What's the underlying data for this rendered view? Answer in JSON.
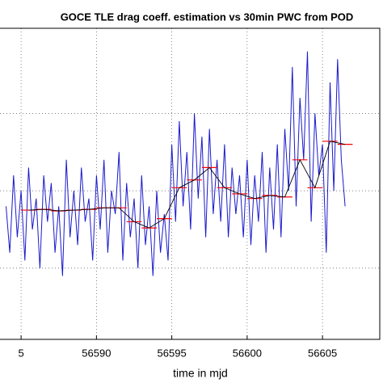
{
  "chart_data": {
    "type": "line",
    "title": "GOCE TLE drag coeff. estimation vs 30min PWC from POD",
    "xlabel": "time in mjd",
    "xlim": [
      56583.6,
      56608.8
    ],
    "xticks": [
      {
        "value": 56585,
        "label": "5"
      },
      56590,
      56595,
      56600,
      56605
    ],
    "ylim": [
      2.04,
      4.05
    ],
    "ygrid": [
      2.5,
      3,
      3.5
    ],
    "grid": true,
    "series": [
      {
        "color": "#1a1acc",
        "x": [
          56584,
          56584.25,
          56584.5,
          56584.75,
          56585,
          56585.25,
          56585.5,
          56585.75,
          56586,
          56586.25,
          56586.5,
          56586.75,
          56587,
          56587.25,
          56587.5,
          56587.75,
          56588,
          56588.25,
          56588.5,
          56588.75,
          56589,
          56589.25,
          56589.5,
          56589.75,
          56590,
          56590.25,
          56590.5,
          56590.75,
          56591,
          56591.25,
          56591.5,
          56591.75,
          56592,
          56592.25,
          56592.5,
          56592.75,
          56593,
          56593.25,
          56593.5,
          56593.75,
          56594,
          56594.25,
          56594.5,
          56594.75,
          56595,
          56595.25,
          56595.5,
          56595.75,
          56596,
          56596.25,
          56596.5,
          56596.75,
          56597,
          56597.25,
          56597.5,
          56597.75,
          56598,
          56598.25,
          56598.5,
          56598.75,
          56599,
          56599.25,
          56599.5,
          56599.75,
          56600,
          56600.25,
          56600.5,
          56600.75,
          56601,
          56601.25,
          56601.5,
          56601.75,
          56602,
          56602.25,
          56602.5,
          56602.75,
          56603,
          56603.25,
          56603.5,
          56603.75,
          56604,
          56604.25,
          56604.5,
          56604.75,
          56605,
          56605.25,
          56605.5,
          56605.75,
          56606,
          56606.25,
          56606.5
        ],
        "values": [
          2.9,
          2.6,
          3.1,
          2.7,
          3.0,
          2.55,
          3.15,
          2.75,
          2.95,
          2.5,
          3.1,
          2.8,
          3.05,
          2.6,
          2.9,
          2.45,
          3.2,
          2.7,
          3.0,
          2.65,
          3.15,
          2.8,
          2.95,
          2.55,
          3.1,
          2.75,
          3.2,
          2.6,
          3.0,
          2.85,
          3.25,
          2.55,
          3.05,
          2.7,
          2.95,
          2.5,
          3.1,
          2.65,
          2.9,
          2.45,
          3.0,
          2.6,
          2.85,
          2.55,
          3.3,
          2.8,
          3.45,
          2.9,
          3.25,
          2.75,
          3.5,
          2.95,
          3.35,
          2.7,
          3.4,
          2.85,
          3.2,
          2.8,
          3.3,
          2.7,
          3.15,
          2.85,
          3.1,
          2.7,
          3.2,
          2.65,
          3.1,
          2.8,
          3.25,
          2.6,
          3.15,
          2.75,
          3.3,
          2.7,
          3.4,
          3.0,
          3.8,
          2.9,
          3.6,
          3.2,
          3.9,
          2.8,
          3.5,
          3.1,
          3.3,
          2.6,
          3.7,
          3.0,
          3.85,
          3.2,
          2.9
        ]
      },
      {
        "color": "#ff0000",
        "link_color": "#000000",
        "step": true,
        "x": [
          56585,
          56586,
          56587,
          56588,
          56589,
          56590,
          56591,
          56592,
          56593,
          56594,
          56595,
          56596,
          56597,
          56598,
          56599,
          56600,
          56601,
          56602,
          56603,
          56604,
          56605,
          56606
        ],
        "values": [
          2.875,
          2.88,
          2.87,
          2.875,
          2.88,
          2.89,
          2.89,
          2.8,
          2.76,
          2.82,
          3.02,
          3.07,
          3.15,
          3.02,
          2.98,
          2.95,
          2.97,
          2.96,
          3.2,
          3.02,
          3.32,
          3.3
        ]
      }
    ]
  }
}
